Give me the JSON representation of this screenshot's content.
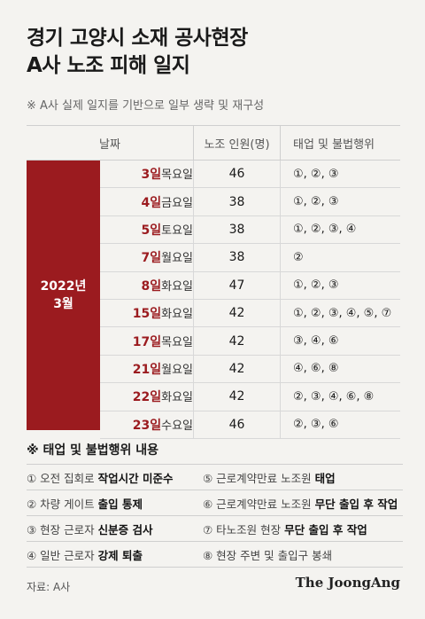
{
  "title": {
    "line1": "경기 고양시 소재 공사현장",
    "line2": "A사 노조 피해 일지"
  },
  "subtitle": "※ A사 실제 일지를 기반으로 일부 생략 및 재구성",
  "table": {
    "headers": {
      "date": "날짜",
      "count": "노조 인원(명)",
      "acts": "태업 및 불법행위"
    },
    "year_line1": "2022년",
    "year_line2": "3월",
    "rows": [
      {
        "day": "3일",
        "weekday": "목요일",
        "count": "46",
        "acts": "①, ②, ③"
      },
      {
        "day": "4일",
        "weekday": "금요일",
        "count": "38",
        "acts": "①, ②, ③"
      },
      {
        "day": "5일",
        "weekday": "토요일",
        "count": "38",
        "acts": "①, ②, ③, ④"
      },
      {
        "day": "7일",
        "weekday": "월요일",
        "count": "38",
        "acts": "②"
      },
      {
        "day": "8일",
        "weekday": "화요일",
        "count": "47",
        "acts": "①, ②, ③"
      },
      {
        "day": "15일",
        "weekday": "화요일",
        "count": "42",
        "acts": "①, ②, ③, ④, ⑤, ⑦"
      },
      {
        "day": "17일",
        "weekday": "목요일",
        "count": "42",
        "acts": "③, ④, ⑥"
      },
      {
        "day": "21일",
        "weekday": "월요일",
        "count": "42",
        "acts": "④, ⑥, ⑧"
      },
      {
        "day": "22일",
        "weekday": "화요일",
        "count": "42",
        "acts": "②, ③, ④, ⑥, ⑧"
      },
      {
        "day": "23일",
        "weekday": "수요일",
        "count": "46",
        "acts": "②, ③, ⑥"
      }
    ]
  },
  "legend": {
    "title": "※ 태업 및 불법행위 내용",
    "items": [
      {
        "pre": "① 오전 집회로 ",
        "bold": "작업시간 미준수"
      },
      {
        "pre": "⑤ 근로계약만료 노조원 ",
        "bold": "태업"
      },
      {
        "pre": "② 차량 게이트 ",
        "bold": "출입 통제"
      },
      {
        "pre": "⑥ 근로계약만료 노조원 ",
        "bold": "무단 출입 후 작업"
      },
      {
        "pre": "③ 현장 근로자 ",
        "bold": "신분증 검사"
      },
      {
        "pre": "⑦ 타노조원 현장 ",
        "bold": "무단 출입 후 작업"
      },
      {
        "pre": "④ 일반 근로자 ",
        "bold": "강제 퇴출"
      },
      {
        "pre": "⑧ 현장 주변 및 출입구 봉쇄",
        "bold": ""
      }
    ]
  },
  "source": "자료: A사",
  "brand": "The JoongAng",
  "colors": {
    "accent": "#9b1b1f",
    "background": "#f4f3f0"
  }
}
